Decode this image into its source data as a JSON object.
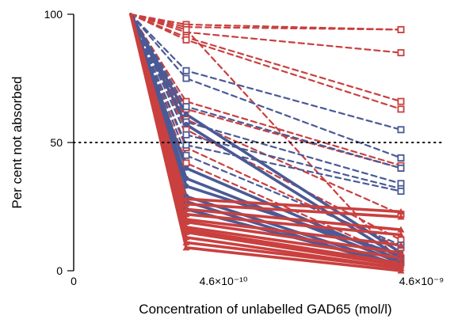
{
  "chart_data": {
    "type": "line",
    "xlabel": "Concentration of unlabelled GAD65 (mol/l)",
    "ylabel": "Per cent not absorbed",
    "x_positions": [
      "0",
      "4.6×10⁻¹⁰",
      "4.6×10⁻⁹"
    ],
    "x_tick_labels": [
      {
        "x": "0",
        "text": "0"
      },
      {
        "x": "4.6×10⁻¹⁰",
        "text": "4.6×10⁻¹⁰"
      },
      {
        "x": "4.6×10⁻⁹",
        "text": "4.6×10⁻⁹"
      }
    ],
    "y_ticks": [
      0,
      50,
      100
    ],
    "ylim": [
      0,
      100
    ],
    "reference_line": 50,
    "colors": {
      "red": "#c9403f",
      "blue": "#4a5a96"
    },
    "series": [
      {
        "color": "red",
        "style": "dashed",
        "marker": "open-square",
        "values": [
          100,
          96,
          94
        ]
      },
      {
        "color": "red",
        "style": "dashed",
        "marker": "open-square",
        "values": [
          100,
          95,
          94
        ]
      },
      {
        "color": "red",
        "style": "dashed",
        "marker": "open-square",
        "values": [
          100,
          93,
          85
        ]
      },
      {
        "color": "red",
        "style": "dashed",
        "marker": "open-square",
        "values": [
          100,
          91,
          66
        ]
      },
      {
        "color": "red",
        "style": "dashed",
        "marker": "open-square",
        "values": [
          100,
          90,
          63
        ]
      },
      {
        "color": "red",
        "style": "dashed",
        "marker": "open-square",
        "values": [
          100,
          66,
          41
        ]
      },
      {
        "color": "red",
        "style": "dashed",
        "marker": "open-square",
        "values": [
          100,
          63,
          40
        ]
      },
      {
        "color": "red",
        "style": "dashed",
        "marker": "open-square",
        "values": [
          100,
          59,
          22
        ]
      },
      {
        "color": "red",
        "style": "dashed",
        "marker": "open-square",
        "values": [
          100,
          55,
          12
        ]
      },
      {
        "color": "red",
        "style": "dashed",
        "marker": "open-square",
        "values": [
          100,
          48,
          9
        ]
      },
      {
        "color": "red",
        "style": "dashed",
        "marker": "open-square",
        "values": [
          100,
          42,
          5
        ]
      },
      {
        "color": "red",
        "style": "dashed",
        "marker": "open-square",
        "values": [
          100,
          94,
          3
        ]
      },
      {
        "color": "blue",
        "style": "dashed",
        "marker": "open-square",
        "values": [
          100,
          78,
          55
        ]
      },
      {
        "color": "blue",
        "style": "dashed",
        "marker": "open-square",
        "values": [
          100,
          75,
          44
        ]
      },
      {
        "color": "blue",
        "style": "dashed",
        "marker": "open-square",
        "values": [
          100,
          64,
          40
        ]
      },
      {
        "color": "blue",
        "style": "dashed",
        "marker": "open-square",
        "values": [
          100,
          58,
          34
        ]
      },
      {
        "color": "blue",
        "style": "dashed",
        "marker": "open-square",
        "values": [
          100,
          53,
          32
        ]
      },
      {
        "color": "blue",
        "style": "dashed",
        "marker": "open-square",
        "values": [
          100,
          49,
          31
        ]
      },
      {
        "color": "blue",
        "style": "dashed",
        "marker": "open-square",
        "values": [
          100,
          45,
          10
        ]
      },
      {
        "color": "blue",
        "style": "solid",
        "marker": "filled-circle",
        "values": [
          100,
          61,
          7
        ]
      },
      {
        "color": "blue",
        "style": "solid",
        "marker": "filled-circle",
        "values": [
          100,
          57,
          5
        ]
      },
      {
        "color": "blue",
        "style": "solid",
        "marker": "filled-circle",
        "values": [
          100,
          40,
          4
        ]
      },
      {
        "color": "blue",
        "style": "solid",
        "marker": "filled-circle",
        "values": [
          100,
          36,
          3
        ]
      },
      {
        "color": "blue",
        "style": "solid",
        "marker": "filled-circle",
        "values": [
          100,
          33,
          6
        ]
      },
      {
        "color": "blue",
        "style": "solid",
        "marker": "filled-circle",
        "values": [
          100,
          29,
          2
        ]
      },
      {
        "color": "blue",
        "style": "solid",
        "marker": "filled-circle",
        "values": [
          100,
          27,
          1
        ]
      },
      {
        "color": "blue",
        "style": "solid",
        "marker": "filled-circle",
        "values": [
          100,
          24,
          2
        ]
      },
      {
        "color": "red",
        "style": "solid",
        "marker": "filled-triangle",
        "values": [
          100,
          28,
          23
        ]
      },
      {
        "color": "red",
        "style": "solid",
        "marker": "filled-triangle",
        "values": [
          100,
          26,
          21
        ]
      },
      {
        "color": "red",
        "style": "solid",
        "marker": "filled-triangle",
        "values": [
          100,
          24,
          16
        ]
      },
      {
        "color": "red",
        "style": "solid",
        "marker": "filled-triangle",
        "values": [
          100,
          22,
          14
        ]
      },
      {
        "color": "red",
        "style": "solid",
        "marker": "filled-triangle",
        "values": [
          100,
          20,
          10
        ]
      },
      {
        "color": "red",
        "style": "solid",
        "marker": "filled-triangle",
        "values": [
          100,
          19,
          7
        ]
      },
      {
        "color": "red",
        "style": "solid",
        "marker": "filled-triangle",
        "values": [
          100,
          17,
          5
        ]
      },
      {
        "color": "red",
        "style": "solid",
        "marker": "filled-triangle",
        "values": [
          100,
          16,
          3
        ]
      },
      {
        "color": "red",
        "style": "solid",
        "marker": "filled-triangle",
        "values": [
          100,
          15,
          2
        ]
      },
      {
        "color": "red",
        "style": "solid",
        "marker": "filled-triangle",
        "values": [
          100,
          13,
          1
        ]
      },
      {
        "color": "red",
        "style": "solid",
        "marker": "filled-triangle",
        "values": [
          100,
          11,
          1
        ]
      },
      {
        "color": "red",
        "style": "solid",
        "marker": "filled-triangle",
        "values": [
          100,
          9,
          0
        ]
      }
    ]
  }
}
